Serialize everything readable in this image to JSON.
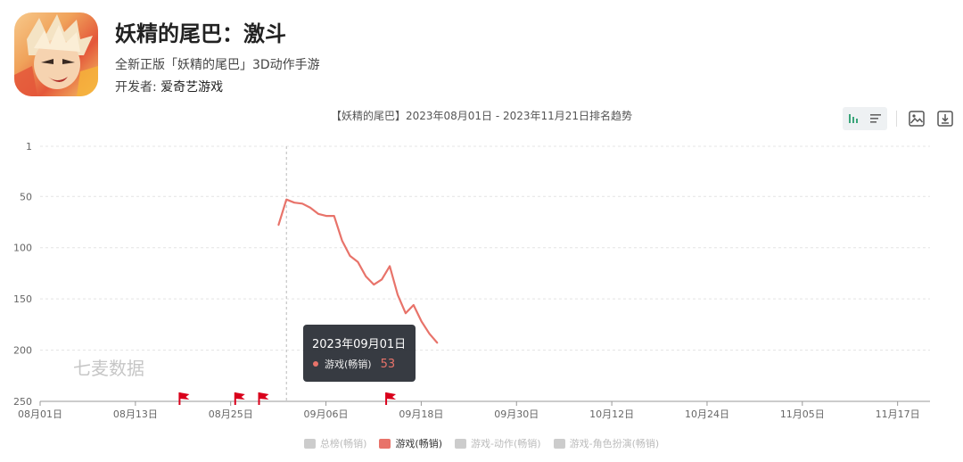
{
  "app": {
    "title": "妖精的尾巴：激斗",
    "subtitle": "全新正版「妖精的尾巴」3D动作手游",
    "developer_label": "开发者: ",
    "developer_name": "爱奇艺游戏"
  },
  "icons": {
    "bar_chart": "bar-chart-icon",
    "list": "list-icon",
    "save_image": "image-icon",
    "download": "download-icon"
  },
  "watermark": "七麦数据",
  "tooltip": {
    "date": "2023年09月01日",
    "series": "游戏(畅销)",
    "value": "53"
  },
  "colors": {
    "accent": "#e8736a",
    "inactive": "#cccccc",
    "marker": "#d9001b",
    "tooltip_bg": "#2c3038"
  },
  "chart_data": {
    "type": "line",
    "title": "【妖精的尾巴】2023年08月01日 - 2023年11月21日排名趋势",
    "x_range": [
      "2023-08-01",
      "2023-11-21"
    ],
    "x_ticks": [
      "08月01日",
      "08月13日",
      "08月25日",
      "09月06日",
      "09月18日",
      "09月30日",
      "10月12日",
      "10月24日",
      "11月05日",
      "11月17日"
    ],
    "y_axis": {
      "inverted": true,
      "ticks": [
        1,
        50,
        100,
        150,
        200,
        250
      ],
      "min": 1,
      "max": 250
    },
    "grid": true,
    "legend_position": "bottom",
    "series": [
      {
        "name": "总榜(畅销)",
        "active": false,
        "points": []
      },
      {
        "name": "游戏(畅销)",
        "active": true,
        "points": [
          {
            "date": "2023-08-31",
            "rank": 78
          },
          {
            "date": "2023-09-01",
            "rank": 53
          },
          {
            "date": "2023-09-02",
            "rank": 56
          },
          {
            "date": "2023-09-03",
            "rank": 57
          },
          {
            "date": "2023-09-04",
            "rank": 61
          },
          {
            "date": "2023-09-05",
            "rank": 67
          },
          {
            "date": "2023-09-06",
            "rank": 69
          },
          {
            "date": "2023-09-07",
            "rank": 69
          },
          {
            "date": "2023-09-08",
            "rank": 93
          },
          {
            "date": "2023-09-09",
            "rank": 108
          },
          {
            "date": "2023-09-10",
            "rank": 114
          },
          {
            "date": "2023-09-11",
            "rank": 128
          },
          {
            "date": "2023-09-12",
            "rank": 136
          },
          {
            "date": "2023-09-13",
            "rank": 131
          },
          {
            "date": "2023-09-14",
            "rank": 118
          },
          {
            "date": "2023-09-15",
            "rank": 146
          },
          {
            "date": "2023-09-16",
            "rank": 164
          },
          {
            "date": "2023-09-17",
            "rank": 156
          },
          {
            "date": "2023-09-18",
            "rank": 172
          },
          {
            "date": "2023-09-19",
            "rank": 184
          },
          {
            "date": "2023-09-20",
            "rank": 193
          }
        ]
      },
      {
        "name": "游戏-动作(畅销)",
        "active": false,
        "points": []
      },
      {
        "name": "游戏-角色扮演(畅销)",
        "active": false,
        "points": []
      }
    ],
    "event_markers": [
      "2023-08-19",
      "2023-08-26",
      "2023-08-29",
      "2023-09-14"
    ],
    "crosshair_date": "2023-09-01"
  }
}
